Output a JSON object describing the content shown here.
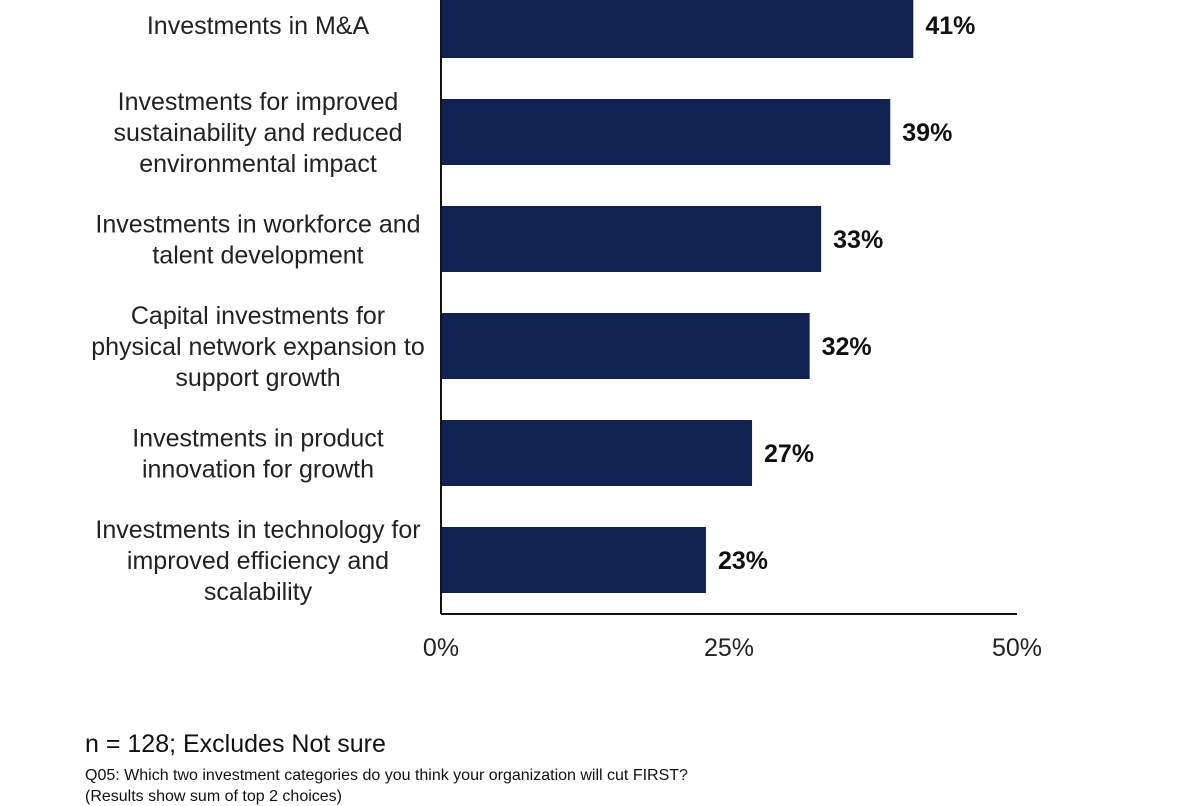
{
  "chart_data": {
    "type": "bar",
    "orientation": "horizontal",
    "categories": [
      "Investments in M&A",
      "Investments for improved sustainability and reduced environmental impact",
      "Investments in workforce and talent development",
      "Capital investments for physical network expansion to support growth",
      "Investments in product innovation for growth",
      "Investments in technology for improved efficiency and scalability"
    ],
    "category_lines": [
      [
        "Investments in M&A"
      ],
      [
        "Investments for improved",
        "sustainability and reduced",
        "environmental impact"
      ],
      [
        "Investments in workforce and",
        "talent development"
      ],
      [
        "Capital investments for",
        "physical network expansion to",
        "support growth"
      ],
      [
        "Investments in product",
        "innovation for growth"
      ],
      [
        "Investments in technology for",
        "improved efficiency and",
        "scalability"
      ]
    ],
    "values": [
      41,
      39,
      33,
      32,
      27,
      23
    ],
    "value_labels": [
      "41%",
      "39%",
      "33%",
      "32%",
      "27%",
      "23%"
    ],
    "xlim": [
      0,
      50
    ],
    "x_ticks": [
      0,
      25,
      50
    ],
    "x_tick_labels": [
      "0%",
      "25%",
      "50%"
    ],
    "bar_color": "#0f2252",
    "grid": false,
    "legend": "none"
  },
  "footnotes": {
    "sample": "n = 128; Excludes Not sure",
    "question": "Q05: Which two investment categories do you think your organization will cut FIRST?",
    "results": "(Results show sum of top 2 choices)"
  }
}
